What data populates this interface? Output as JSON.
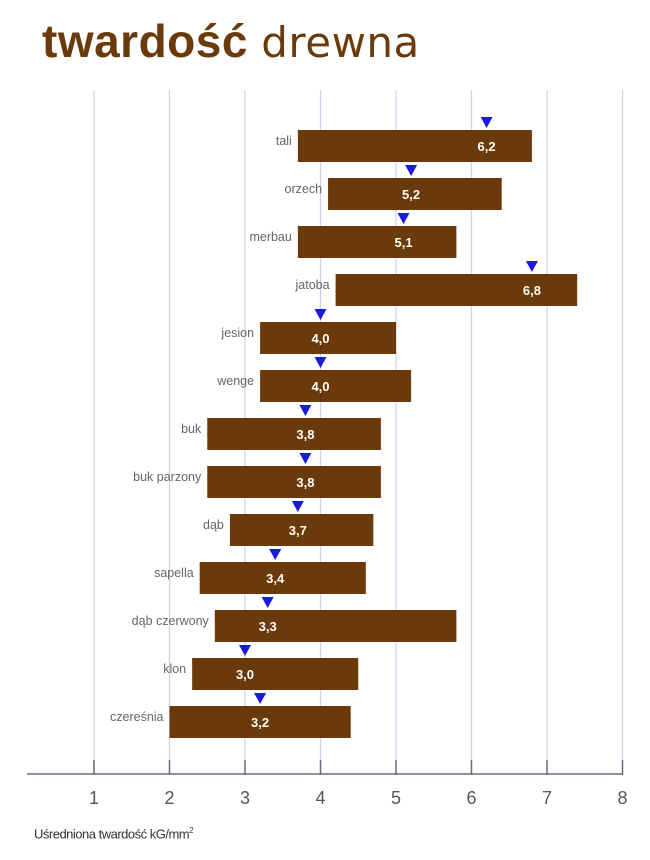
{
  "title": {
    "bold": "twardość",
    "light": "drewna"
  },
  "chart_data": {
    "type": "bar",
    "subtype": "floating-range-with-marker",
    "title": "twardość drewna",
    "xlabel": "Uśredniona twardość kG/mm²",
    "xlabel_parts": {
      "text": "Uśredniona twardość kG/mm",
      "sup": "2"
    },
    "xlim": [
      0,
      8
    ],
    "xticks": [
      "1",
      "2",
      "3",
      "4",
      "5",
      "6",
      "7",
      "8"
    ],
    "grid": true,
    "colors": {
      "bar": "#6b3a0a",
      "marker": "#1a1adf",
      "grid": "#d0d0ec",
      "axis": "#6a6a80"
    },
    "categories": [
      "tali",
      "orzech",
      "merbau",
      "jatoba",
      "jesion",
      "wenge",
      "buk",
      "buk parzony",
      "dąb",
      "sapella",
      "dąb czerwony",
      "klon",
      "czereśnia"
    ],
    "ranges": [
      [
        3.7,
        6.8
      ],
      [
        4.1,
        6.4
      ],
      [
        3.7,
        5.8
      ],
      [
        4.2,
        7.4
      ],
      [
        3.2,
        5.0
      ],
      [
        3.2,
        5.2
      ],
      [
        2.5,
        4.8
      ],
      [
        2.5,
        4.8
      ],
      [
        2.8,
        4.7
      ],
      [
        2.4,
        4.6
      ],
      [
        2.6,
        5.8
      ],
      [
        2.3,
        4.5
      ],
      [
        2.0,
        4.4
      ]
    ],
    "values": [
      6.2,
      5.2,
      5.1,
      6.8,
      4.0,
      4.0,
      3.8,
      3.8,
      3.7,
      3.4,
      3.3,
      3.0,
      3.2
    ],
    "value_labels": [
      "6,2",
      "5,2",
      "5,1",
      "6,8",
      "4,0",
      "4,0",
      "3,8",
      "3,8",
      "3,7",
      "3,4",
      "3,3",
      "3,0",
      "3,2"
    ]
  }
}
